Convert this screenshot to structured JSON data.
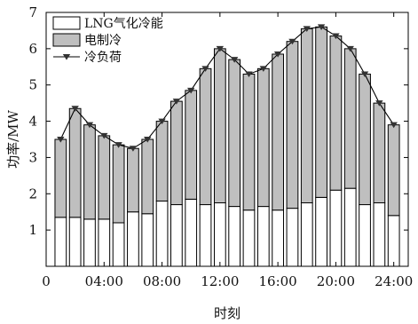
{
  "chart_data": {
    "type": "bar",
    "stacked": true,
    "x": [
      1,
      2,
      3,
      4,
      5,
      6,
      7,
      8,
      9,
      10,
      11,
      12,
      13,
      14,
      15,
      16,
      17,
      18,
      19,
      20,
      21,
      22,
      23,
      24
    ],
    "series": [
      {
        "name": "LNG气化冷能",
        "kind": "bar",
        "color": "#ffffff",
        "values": [
          1.35,
          1.35,
          1.3,
          1.3,
          1.2,
          1.5,
          1.45,
          1.8,
          1.7,
          1.85,
          1.7,
          1.75,
          1.65,
          1.55,
          1.65,
          1.55,
          1.6,
          1.75,
          1.9,
          2.1,
          2.15,
          1.7,
          1.75,
          1.4
        ]
      },
      {
        "name": "电制冷",
        "kind": "bar",
        "color": "#bfbfbf",
        "values": [
          2.15,
          3.0,
          2.6,
          2.3,
          2.15,
          1.75,
          2.05,
          2.2,
          2.85,
          3.0,
          3.75,
          4.25,
          4.05,
          3.75,
          3.8,
          4.3,
          4.6,
          4.8,
          4.7,
          4.25,
          3.85,
          3.6,
          2.75,
          2.5
        ]
      },
      {
        "name": "冷负荷",
        "kind": "line",
        "color": "#000000",
        "marker": "triangle-down",
        "values": [
          3.5,
          4.35,
          3.9,
          3.6,
          3.35,
          3.25,
          3.5,
          4.0,
          4.55,
          4.85,
          5.45,
          6.0,
          5.7,
          5.3,
          5.45,
          5.85,
          6.2,
          6.55,
          6.6,
          6.35,
          6.0,
          5.3,
          4.5,
          3.9
        ]
      }
    ],
    "xlabel": "时刻",
    "ylabel": "功率/MW",
    "xlim": [
      0,
      25
    ],
    "ylim": [
      0,
      7
    ],
    "xticks": [
      0,
      4,
      8,
      12,
      16,
      20,
      24
    ],
    "xtick_labels": [
      "0",
      "04:00",
      "08:00",
      "12:00",
      "16:00",
      "20:00",
      "24:00"
    ],
    "yticks": [
      1,
      2,
      3,
      4,
      5,
      6,
      7
    ],
    "ytick_labels": [
      "1",
      "2",
      "3",
      "4",
      "5",
      "6",
      "7"
    ],
    "grid": false,
    "legend": "top-left"
  }
}
